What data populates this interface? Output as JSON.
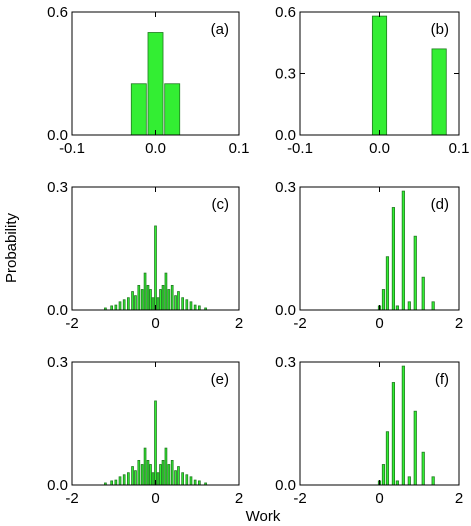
{
  "xlabel": "Work",
  "ylabel": "Probability",
  "colors": {
    "bar_fill": "#33ee33",
    "bar_stroke": "#1f7a1f",
    "axis": "#000000"
  },
  "chart_data": [
    {
      "panel": "(a)",
      "type": "bar",
      "xlim": [
        -0.1,
        0.1
      ],
      "ylim": [
        0,
        0.6
      ],
      "xticks": [
        "-0.1",
        "0.0",
        "0.1"
      ],
      "xtick_values": [
        -0.1,
        0.0,
        0.1
      ],
      "yticks": [
        "0.0",
        "0.6"
      ],
      "ytick_values": [
        0.0,
        0.6
      ],
      "bar_width": 0.018,
      "x": [
        -0.02,
        0.0,
        0.02
      ],
      "values": [
        0.25,
        0.5,
        0.25
      ]
    },
    {
      "panel": "(b)",
      "type": "bar",
      "xlim": [
        -0.1,
        0.1
      ],
      "ylim": [
        0,
        0.6
      ],
      "xticks": [
        "-0.1",
        "0.0",
        "0.1"
      ],
      "xtick_values": [
        -0.1,
        0.0,
        0.1
      ],
      "yticks": [
        "0.0",
        "0.3",
        "0.6"
      ],
      "ytick_values": [
        0.0,
        0.3,
        0.6
      ],
      "bar_width": 0.018,
      "x": [
        0.0,
        0.075
      ],
      "values": [
        0.58,
        0.42
      ]
    },
    {
      "panel": "(c)",
      "type": "bar",
      "xlim": [
        -2,
        2
      ],
      "ylim": [
        0,
        0.3
      ],
      "xticks": [
        "-2",
        "0",
        "2"
      ],
      "xtick_values": [
        -2,
        0,
        2
      ],
      "yticks": [
        "0.0",
        "0.3"
      ],
      "ytick_values": [
        0.0,
        0.3
      ],
      "bar_width": 0.045,
      "x": [
        -1.2,
        -1.05,
        -0.95,
        -0.85,
        -0.75,
        -0.65,
        -0.55,
        -0.48,
        -0.4,
        -0.32,
        -0.25,
        -0.18,
        -0.12,
        -0.06,
        0.0,
        0.06,
        0.12,
        0.18,
        0.25,
        0.32,
        0.4,
        0.48,
        0.55,
        0.65,
        0.75,
        0.85,
        0.95,
        1.05,
        1.2
      ],
      "values": [
        0.005,
        0.01,
        0.012,
        0.02,
        0.025,
        0.03,
        0.045,
        0.035,
        0.06,
        0.05,
        0.09,
        0.06,
        0.05,
        0.03,
        0.205,
        0.03,
        0.05,
        0.06,
        0.09,
        0.05,
        0.06,
        0.035,
        0.045,
        0.03,
        0.025,
        0.02,
        0.012,
        0.01,
        0.005
      ]
    },
    {
      "panel": "(d)",
      "type": "bar",
      "xlim": [
        -2,
        2
      ],
      "ylim": [
        0,
        0.3
      ],
      "xticks": [
        "-2",
        "0",
        "2"
      ],
      "xtick_values": [
        -2,
        0,
        2
      ],
      "yticks": [
        "0.0",
        "0.3"
      ],
      "ytick_values": [
        0.0,
        0.3
      ],
      "bar_width": 0.06,
      "x": [
        0.0,
        0.1,
        0.2,
        0.35,
        0.45,
        0.6,
        0.75,
        0.9,
        1.1,
        1.35
      ],
      "values": [
        0.01,
        0.05,
        0.13,
        0.25,
        0.01,
        0.29,
        0.02,
        0.18,
        0.08,
        0.02
      ]
    },
    {
      "panel": "(e)",
      "type": "bar",
      "xlim": [
        -2,
        2
      ],
      "ylim": [
        0,
        0.3
      ],
      "xticks": [
        "-2",
        "0",
        "2"
      ],
      "xtick_values": [
        -2,
        0,
        2
      ],
      "yticks": [
        "0.0",
        "0.3"
      ],
      "ytick_values": [
        0.0,
        0.3
      ],
      "bar_width": 0.045,
      "x": [
        -1.2,
        -1.05,
        -0.95,
        -0.85,
        -0.75,
        -0.65,
        -0.55,
        -0.48,
        -0.4,
        -0.32,
        -0.25,
        -0.18,
        -0.12,
        -0.06,
        0.0,
        0.06,
        0.12,
        0.18,
        0.25,
        0.32,
        0.4,
        0.48,
        0.55,
        0.65,
        0.75,
        0.85,
        0.95,
        1.05,
        1.2
      ],
      "values": [
        0.005,
        0.01,
        0.012,
        0.02,
        0.025,
        0.03,
        0.045,
        0.035,
        0.06,
        0.05,
        0.09,
        0.06,
        0.05,
        0.03,
        0.205,
        0.03,
        0.05,
        0.06,
        0.09,
        0.05,
        0.06,
        0.035,
        0.045,
        0.03,
        0.025,
        0.02,
        0.012,
        0.01,
        0.005
      ]
    },
    {
      "panel": "(f)",
      "type": "bar",
      "xlim": [
        -2,
        2
      ],
      "ylim": [
        0,
        0.3
      ],
      "xticks": [
        "-2",
        "0",
        "2"
      ],
      "xtick_values": [
        -2,
        0,
        2
      ],
      "yticks": [
        "0.0",
        "0.3"
      ],
      "ytick_values": [
        0.0,
        0.3
      ],
      "bar_width": 0.06,
      "x": [
        0.0,
        0.1,
        0.2,
        0.35,
        0.45,
        0.6,
        0.75,
        0.9,
        1.1,
        1.35
      ],
      "values": [
        0.01,
        0.05,
        0.13,
        0.25,
        0.01,
        0.29,
        0.02,
        0.18,
        0.08,
        0.02
      ]
    }
  ]
}
